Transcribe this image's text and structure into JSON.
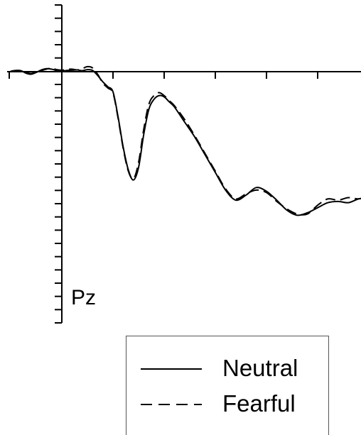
{
  "chart_data": {
    "type": "line",
    "title": "",
    "xlabel": "",
    "ylabel": "",
    "annotation": "Pz",
    "x_origin": 0,
    "y_origin": 0,
    "xlim": [
      -100,
      600
    ],
    "ylim": [
      -1,
      1
    ],
    "x_ticks": [
      0,
      100,
      200,
      300,
      400,
      500
    ],
    "y_ticks_count": 25,
    "series": [
      {
        "name": "Neutral",
        "style": "solid",
        "x": [
          -100,
          -90,
          -80,
          -70,
          -60,
          -50,
          -40,
          -30,
          -20,
          -10,
          0,
          10,
          20,
          30,
          40,
          50,
          60,
          70,
          80,
          90,
          100,
          110,
          120,
          130,
          140,
          150,
          160,
          170,
          180,
          190,
          200,
          210,
          220,
          240,
          260,
          280,
          300,
          320,
          340,
          360,
          380,
          400,
          420,
          440,
          460,
          480,
          500,
          520,
          540,
          560,
          580,
          600
        ],
        "y": [
          0.002,
          0.005,
          0.004,
          -0.006,
          -0.01,
          -0.003,
          0.007,
          0.012,
          0.01,
          0.005,
          0.002,
          0.005,
          0.006,
          0.007,
          0.004,
          0.008,
          0.005,
          -0.015,
          -0.04,
          -0.06,
          -0.08,
          -0.18,
          -0.3,
          -0.39,
          -0.43,
          -0.38,
          -0.25,
          -0.15,
          -0.11,
          -0.095,
          -0.1,
          -0.12,
          -0.14,
          -0.2,
          -0.26,
          -0.33,
          -0.4,
          -0.47,
          -0.51,
          -0.49,
          -0.46,
          -0.475,
          -0.51,
          -0.55,
          -0.57,
          -0.56,
          -0.54,
          -0.52,
          -0.515,
          -0.52,
          -0.505,
          -0.5
        ]
      },
      {
        "name": "Fearful",
        "style": "dashed",
        "x": [
          -100,
          -90,
          -80,
          -70,
          -60,
          -50,
          -40,
          -30,
          -20,
          -10,
          0,
          10,
          20,
          30,
          40,
          50,
          60,
          70,
          80,
          90,
          100,
          110,
          120,
          130,
          140,
          150,
          160,
          170,
          180,
          190,
          200,
          210,
          220,
          240,
          260,
          280,
          300,
          320,
          340,
          360,
          380,
          400,
          420,
          440,
          460,
          480,
          500,
          520,
          540,
          560,
          580,
          600
        ],
        "y": [
          0.001,
          0.003,
          0.001,
          -0.004,
          -0.007,
          -0.002,
          0.004,
          0.01,
          0.014,
          0.008,
          0.006,
          0.009,
          0.01,
          0.007,
          0.012,
          0.02,
          0.015,
          -0.01,
          -0.045,
          -0.065,
          -0.085,
          -0.185,
          -0.305,
          -0.395,
          -0.425,
          -0.36,
          -0.23,
          -0.13,
          -0.095,
          -0.083,
          -0.095,
          -0.115,
          -0.135,
          -0.19,
          -0.255,
          -0.325,
          -0.395,
          -0.465,
          -0.505,
          -0.485,
          -0.47,
          -0.48,
          -0.515,
          -0.545,
          -0.565,
          -0.565,
          -0.53,
          -0.505,
          -0.51,
          -0.5,
          -0.505,
          -0.495
        ]
      }
    ]
  },
  "legend": {
    "entries": [
      {
        "label": "Neutral",
        "style": "solid"
      },
      {
        "label": "Fearful",
        "style": "dashed"
      }
    ]
  }
}
